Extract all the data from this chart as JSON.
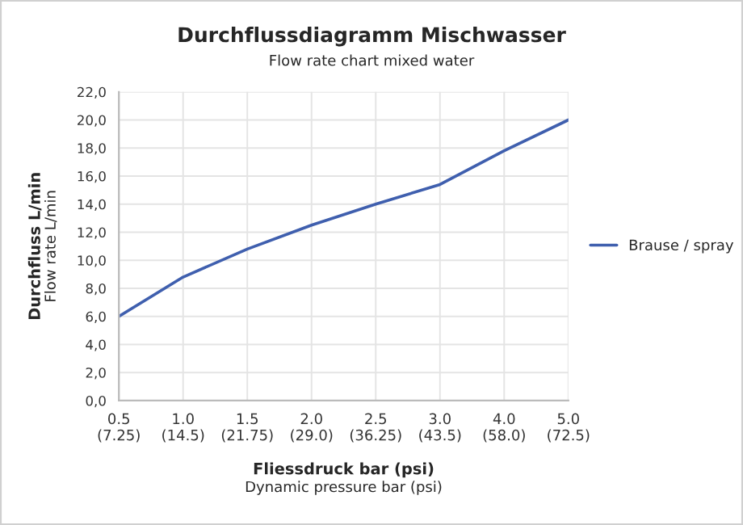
{
  "chart_data": {
    "type": "line",
    "title": "Durchflussdiagramm Mischwasser",
    "subtitle": "Flow rate chart mixed water",
    "xlabel": "Fliessdruck bar (psi)\nDynamic pressure bar (psi)",
    "ylabel": "Durchfluss L/min\nFlow rate L/min",
    "categories": [
      "0.5\n(7.25)",
      "1.0\n(14.5)",
      "1.5\n(21.75)",
      "2.0\n(29.0)",
      "2.5\n(36.25)",
      "3.0\n(43.5)",
      "4.0\n(58.0)",
      "5.0\n(72.5)"
    ],
    "series": [
      {
        "name": "Brause / spray",
        "color": "#3f5fae",
        "values": [
          6.0,
          8.8,
          10.8,
          12.5,
          14.0,
          15.4,
          17.8,
          20.0
        ]
      }
    ],
    "ylim": [
      0,
      22
    ],
    "yticks": [
      {
        "value": 0,
        "label": "0,0"
      },
      {
        "value": 2,
        "label": "2,0"
      },
      {
        "value": 4,
        "label": "4,0"
      },
      {
        "value": 6,
        "label": "6,0"
      },
      {
        "value": 8,
        "label": "8,0"
      },
      {
        "value": 10,
        "label": "10,0"
      },
      {
        "value": 12,
        "label": "12,0"
      },
      {
        "value": 14,
        "label": "14,0"
      },
      {
        "value": 16,
        "label": "16,0"
      },
      {
        "value": 18,
        "label": "18,0"
      },
      {
        "value": 20,
        "label": "20,0"
      },
      {
        "value": 22,
        "label": "22,0"
      }
    ],
    "grid": true,
    "legend": "right",
    "marker": "none",
    "line_style": "solid"
  }
}
